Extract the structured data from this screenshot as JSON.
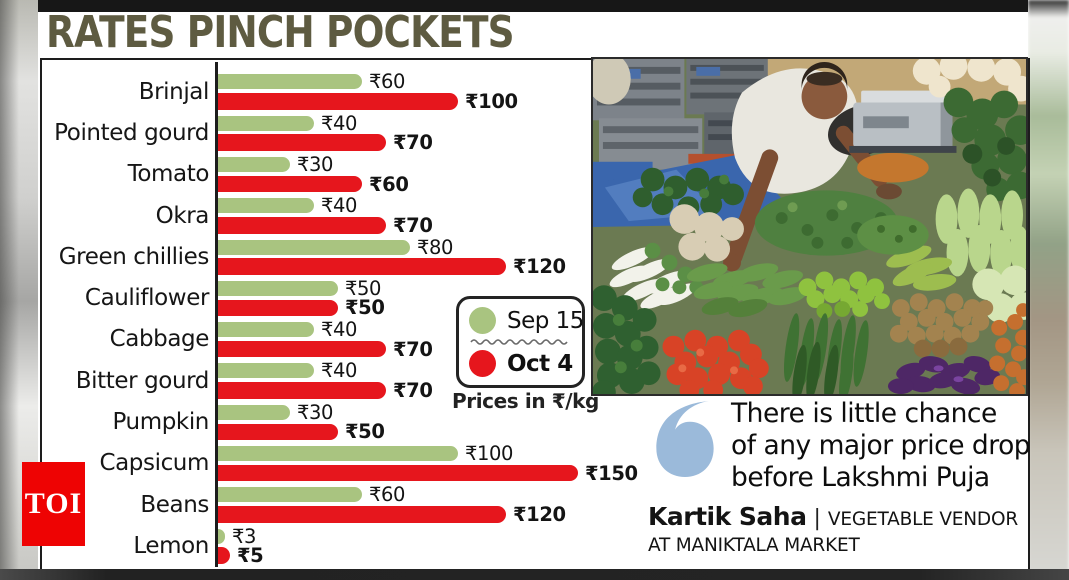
{
  "title": "RATES PINCH POCKETS",
  "chart_data": {
    "type": "bar",
    "orientation": "horizontal",
    "unit_note": "Prices in ₹/kg",
    "currency_prefix": "₹",
    "categories": [
      "Brinjal",
      "Pointed gourd",
      "Tomato",
      "Okra",
      "Green chillies",
      "Cauliflower",
      "Cabbage",
      "Bitter gourd",
      "Pumpkin",
      "Capsicum",
      "Beans",
      "Lemon"
    ],
    "series": [
      {
        "name": "Sep 15",
        "color": "#a9c480",
        "values": [
          60,
          40,
          30,
          40,
          80,
          50,
          40,
          40,
          30,
          100,
          60,
          3
        ]
      },
      {
        "name": "Oct 4",
        "color": "#e6161d",
        "values": [
          100,
          70,
          60,
          70,
          120,
          50,
          70,
          70,
          50,
          150,
          120,
          5
        ]
      }
    ],
    "legend_position": "middle-right",
    "xlim": [
      0,
      160
    ],
    "grid": false
  },
  "quote": {
    "text": "There is little chance\nof any major price drop\nbefore Lakshmi Puja",
    "attribution_name": "Kartik Saha",
    "attribution_separator": "|",
    "attribution_role": "VEGETABLE VENDOR AT MANIKTALA MARKET"
  },
  "logo": {
    "text": "TOI"
  }
}
